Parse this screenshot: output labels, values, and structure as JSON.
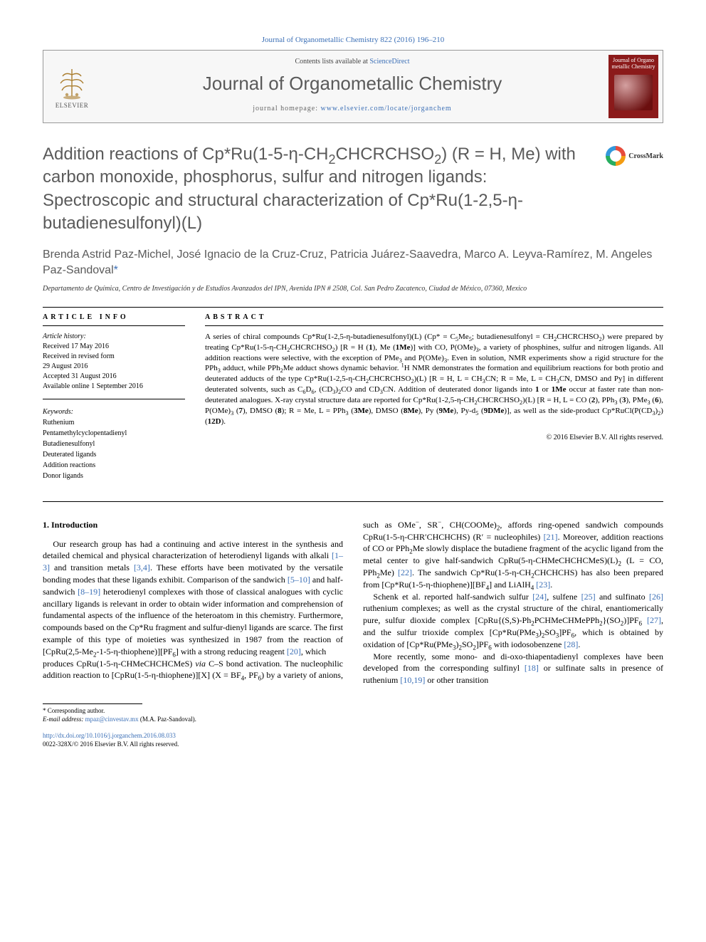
{
  "citation": "Journal of Organometallic Chemistry 822 (2016) 196–210",
  "header": {
    "contents_prefix": "Contents lists available at ",
    "contents_link": "ScienceDirect",
    "journal_name": "Journal of Organometallic Chemistry",
    "homepage_prefix": "journal homepage: ",
    "homepage_link": "www.elsevier.com/locate/jorganchem",
    "elsevier_label": "ELSEVIER",
    "cover_title": "Journal of Organo metallic Chemistry"
  },
  "crossmark_label": "CrossMark",
  "title_html": "Addition reactions of Cp*Ru(1-5-η-CH<sub>2</sub>CHCRCHSO<sub>2</sub>) (R = H, Me) with carbon monoxide, phosphorus, sulfur and nitrogen ligands: Spectroscopic and structural characterization of Cp*Ru(1-2,5-η-butadienesulfonyl)(L)",
  "authors_html": "Brenda Astrid Paz-Michel, José Ignacio de la Cruz-Cruz, Patricia Juárez-Saavedra, Marco A. Leyva-Ramírez, M. Angeles Paz-Sandoval<span class=\"ast\">*</span>",
  "affiliation": "Departamento de Química, Centro de Investigación y de Estudios Avanzados del IPN, Avenida IPN # 2508, Col. San Pedro Zacatenco, Ciudad de México, 07360, Mexico",
  "info_heading": "ARTICLE INFO",
  "abstract_heading": "ABSTRACT",
  "history": {
    "label": "Article history:",
    "lines": [
      "Received 17 May 2016",
      "Received in revised form",
      "29 August 2016",
      "Accepted 31 August 2016",
      "Available online 1 September 2016"
    ]
  },
  "keywords": {
    "label": "Keywords:",
    "items": [
      "Ruthenium",
      "Pentamethylcyclopentadienyl",
      "Butadienesulfonyl",
      "Deuterated ligands",
      "Addition reactions",
      "Donor ligands"
    ]
  },
  "abstract_html": "A series of chiral compounds Cp*Ru(1-2,5-η-butadienesulfonyl)(L) (Cp* = C<sub>5</sub>Me<sub>5</sub>; butadienesulfonyl = CH<sub>2</sub>CHCRCHSO<sub>2</sub>) were prepared by treating Cp*Ru(1-5-η-CH<sub>2</sub>CHCRCHSO<sub>2</sub>) [R = H (<b>1</b>), Me (<b>1Me</b>)] with CO, P(OMe)<sub>3</sub>, a variety of phosphines, sulfur and nitrogen ligands. All addition reactions were selective, with the exception of PMe<sub>3</sub> and P(OMe)<sub>3</sub>. Even in solution, NMR experiments show a rigid structure for the PPh<sub>3</sub> adduct, while PPh<sub>2</sub>Me adduct shows dynamic behavior. <sup>1</sup>H NMR demonstrates the formation and equilibrium reactions for both protio and deuterated adducts of the type Cp*Ru(1-2,5-η-CH<sub>2</sub>CHCRCHSO<sub>2</sub>)(L) [R = H, L = CH<sub>3</sub>CN; R = Me, L = CH<sub>3</sub>CN, DMSO and Py] in different deuterated solvents, such as C<sub>6</sub>D<sub>6</sub>, (CD<sub>3</sub>)<sub>2</sub>CO and CD<sub>3</sub>CN. Addition of deuterated donor ligands into <b>1</b> or <b>1Me</b> occur at faster rate than non-deuterated analogues. X-ray crystal structure data are reported for Cp*Ru(1-2,5-η-CH<sub>2</sub>CHCRCHSO<sub>2</sub>)(L) [R = H, L = CO (<b>2</b>), PPh<sub>3</sub> (<b>3</b>), PMe<sub>3</sub> (<b>6</b>), P(OMe)<sub>3</sub> (<b>7</b>), DMSO (<b>8</b>); R = Me, L = PPh<sub>3</sub> (<b>3Me</b>), DMSO (<b>8Me</b>), Py (<b>9Me</b>), Py-d<sub>5</sub> (<b>9DMe</b>)], as well as the side-product Cp*RuCl(P(CD<sub>3</sub>)<sub>2</sub>) (<b>12D</b>).",
  "copyright": "© 2016 Elsevier B.V. All rights reserved.",
  "section1_heading": "1. Introduction",
  "body": {
    "p1_html": "Our research group has had a continuing and active interest in the synthesis and detailed chemical and physical characterization of heterodienyl ligands with alkali <span class=\"ref\">[1–3]</span> and transition metals <span class=\"ref\">[3,4]</span>. These efforts have been motivated by the versatile bonding modes that these ligands exhibit. Comparison of the sandwich <span class=\"ref\">[5–10]</span> and half-sandwich <span class=\"ref\">[8–19]</span> heterodienyl complexes with those of classical analogues with cyclic ancillary ligands is relevant in order to obtain wider information and comprehension of fundamental aspects of the influence of the heteroatom in this chemistry. Furthermore, compounds based on the Cp*Ru fragment and sulfur-dienyl ligands are scarce. The first example of this type of moieties was synthesized in 1987 from the reaction of [CpRu(2,5-Me<sub>2</sub>-1-5-η-thiophene)][PF<sub>6</sub>] with a strong reducing reagent <span class=\"ref\">[20]</span>, which",
    "p2_html": "produces CpRu(1-5-η-CHMeCHCHCMeS) <i>via</i> C–S bond activation. The nucleophilic addition reaction to [CpRu(1-5-η-thiophene)][X] (X = BF<sub>4</sub>, PF<sub>6</sub>) by a variety of anions, such as OMe<sup>−</sup>, SR<sup>−</sup>, CH(COOMe)<sub>2</sub>, affords ring-opened sandwich compounds CpRu(1-5-η-CHR′CHCHCHS) (R′ = nucleophiles) <span class=\"ref\">[21]</span>. Moreover, addition reactions of CO or PPh<sub>2</sub>Me slowly displace the butadiene fragment of the acyclic ligand from the metal center to give half-sandwich CpRu(5-η-CHMeCHCHCMeS)(L)<sub>2</sub> (L = CO, PPh<sub>2</sub>Me) <span class=\"ref\">[22]</span>. The sandwich Cp*Ru(1-5-η-CH<sub>2</sub>CHCHCHS) has also been prepared from [Cp*Ru(1-5-η-thiophene)][BF<sub>4</sub>] and LiAlH<sub>4</sub> <span class=\"ref\">[23]</span>.",
    "p3_html": "Schenk et al. reported half-sandwich sulfur <span class=\"ref\">[24]</span>, sulfene <span class=\"ref\">[25]</span> and sulfinato <span class=\"ref\">[26]</span> ruthenium complexes; as well as the crystal structure of the chiral, enantiomerically pure, sulfur dioxide complex [CpRu{(S,S)-Ph<sub>2</sub>PCHMeCHMePPh<sub>2</sub>}(SO<sub>2</sub>)]PF<sub>6</sub> <span class=\"ref\">[27]</span>, and the sulfur trioxide complex [Cp*Ru(PMe<sub>3</sub>)<sub>2</sub>SO<sub>3</sub>]PF<sub>6</sub>, which is obtained by oxidation of [Cp*Ru(PMe<sub>3</sub>)<sub>2</sub>SO<sub>2</sub>]PF<sub>6</sub> with iodosobenzene <span class=\"ref\">[28]</span>.",
    "p4_html": "More recently, some mono- and di-oxo-thiapentadienyl complexes have been developed from the corresponding sulfinyl <span class=\"ref\">[18]</span> or sulfinate salts in presence of ruthenium <span class=\"ref\">[10,19]</span> or other transition"
  },
  "footnote": {
    "corr": "* Corresponding author.",
    "email_label": "E-mail address:",
    "email": "mpaz@cinvestav.mx",
    "email_affil": "(M.A. Paz-Sandoval)."
  },
  "doi": {
    "link": "http://dx.doi.org/10.1016/j.jorganchem.2016.08.033",
    "issn_line": "0022-328X/© 2016 Elsevier B.V. All rights reserved."
  },
  "colors": {
    "link": "#3b6fb6",
    "heading_gray": "#5a5a5a",
    "cover_bg": "#8b1a1a"
  }
}
